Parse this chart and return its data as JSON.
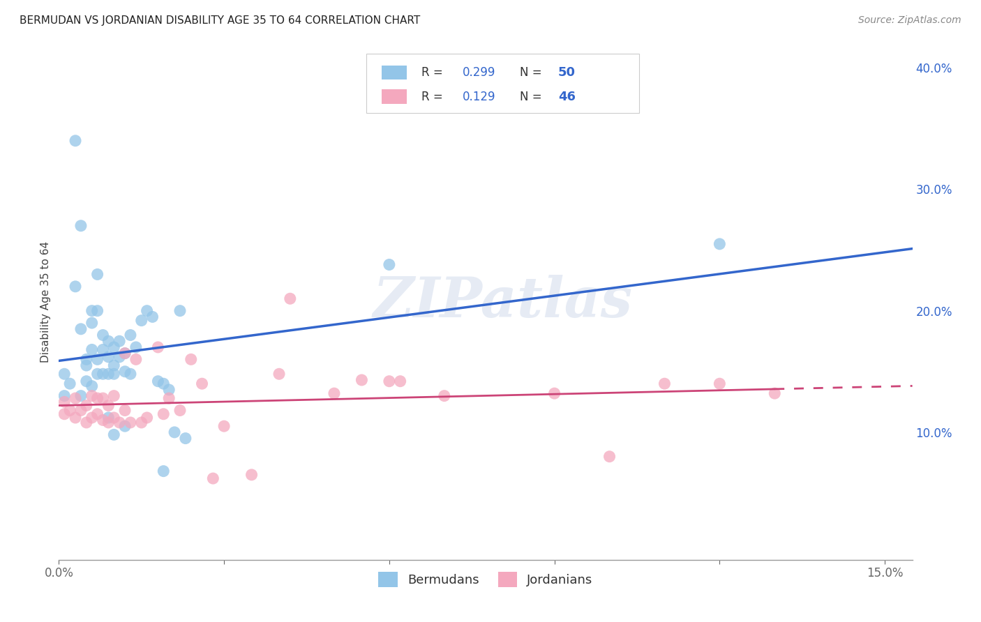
{
  "title": "BERMUDAN VS JORDANIAN DISABILITY AGE 35 TO 64 CORRELATION CHART",
  "source": "Source: ZipAtlas.com",
  "ylabel": "Disability Age 35 to 64",
  "xlim": [
    0.0,
    0.155
  ],
  "ylim": [
    -0.005,
    0.42
  ],
  "yticks_right": [
    0.1,
    0.2,
    0.3,
    0.4
  ],
  "ytick_labels_right": [
    "10.0%",
    "20.0%",
    "30.0%",
    "40.0%"
  ],
  "legend_label1": "Bermudans",
  "legend_label2": "Jordanians",
  "R1": "0.299",
  "N1": "50",
  "R2": "0.129",
  "N2": "46",
  "color_blue": "#93c5e8",
  "color_pink": "#f4a8be",
  "line_color_blue": "#3366cc",
  "line_color_pink": "#cc4477",
  "watermark": "ZIPatlas",
  "blue_x": [
    0.001,
    0.001,
    0.002,
    0.003,
    0.004,
    0.004,
    0.005,
    0.005,
    0.005,
    0.006,
    0.006,
    0.006,
    0.007,
    0.007,
    0.007,
    0.008,
    0.008,
    0.008,
    0.009,
    0.009,
    0.009,
    0.01,
    0.01,
    0.01,
    0.011,
    0.011,
    0.012,
    0.012,
    0.013,
    0.013,
    0.014,
    0.015,
    0.016,
    0.017,
    0.018,
    0.019,
    0.02,
    0.021,
    0.022,
    0.023,
    0.003,
    0.004,
    0.006,
    0.007,
    0.009,
    0.01,
    0.012,
    0.019,
    0.06,
    0.12
  ],
  "blue_y": [
    0.13,
    0.148,
    0.14,
    0.34,
    0.13,
    0.27,
    0.142,
    0.155,
    0.16,
    0.138,
    0.168,
    0.19,
    0.148,
    0.16,
    0.2,
    0.148,
    0.168,
    0.18,
    0.148,
    0.162,
    0.175,
    0.148,
    0.155,
    0.17,
    0.162,
    0.175,
    0.15,
    0.165,
    0.148,
    0.18,
    0.17,
    0.192,
    0.2,
    0.195,
    0.142,
    0.14,
    0.135,
    0.1,
    0.2,
    0.095,
    0.22,
    0.185,
    0.2,
    0.23,
    0.112,
    0.098,
    0.105,
    0.068,
    0.238,
    0.255
  ],
  "pink_x": [
    0.001,
    0.001,
    0.002,
    0.003,
    0.003,
    0.004,
    0.005,
    0.005,
    0.006,
    0.006,
    0.007,
    0.007,
    0.008,
    0.008,
    0.009,
    0.009,
    0.01,
    0.01,
    0.011,
    0.012,
    0.012,
    0.013,
    0.014,
    0.015,
    0.016,
    0.018,
    0.019,
    0.02,
    0.022,
    0.024,
    0.026,
    0.028,
    0.03,
    0.035,
    0.04,
    0.042,
    0.05,
    0.055,
    0.06,
    0.062,
    0.07,
    0.09,
    0.1,
    0.11,
    0.12,
    0.13
  ],
  "pink_y": [
    0.115,
    0.125,
    0.118,
    0.112,
    0.128,
    0.118,
    0.108,
    0.122,
    0.112,
    0.13,
    0.115,
    0.128,
    0.11,
    0.128,
    0.108,
    0.122,
    0.112,
    0.13,
    0.108,
    0.165,
    0.118,
    0.108,
    0.16,
    0.108,
    0.112,
    0.17,
    0.115,
    0.128,
    0.118,
    0.16,
    0.14,
    0.062,
    0.105,
    0.065,
    0.148,
    0.21,
    0.132,
    0.143,
    0.142,
    0.142,
    0.13,
    0.132,
    0.08,
    0.14,
    0.14,
    0.132
  ]
}
